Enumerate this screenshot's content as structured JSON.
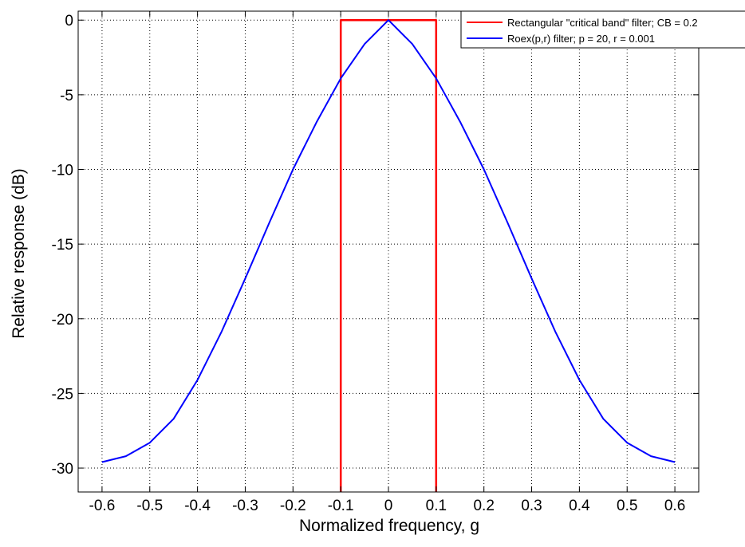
{
  "chart_data": {
    "type": "line",
    "xlabel": "Normalized frequency, g",
    "ylabel": "Relative response (dB)",
    "xlim": [
      -0.65,
      0.65
    ],
    "ylim": [
      -31.6,
      0.6
    ],
    "xticks": [
      -0.6,
      -0.5,
      -0.4,
      -0.3,
      -0.2,
      -0.1,
      0,
      0.1,
      0.2,
      0.3,
      0.4,
      0.5,
      0.6
    ],
    "xtick_labels": [
      "-0.6",
      "-0.5",
      "-0.4",
      "-0.3",
      "-0.2",
      "-0.1",
      "0",
      "0.1",
      "0.2",
      "0.3",
      "0.4",
      "0.5",
      "0.6"
    ],
    "yticks": [
      0,
      -5,
      -10,
      -15,
      -20,
      -25,
      -30
    ],
    "ytick_labels": [
      "0",
      "-5",
      "-10",
      "-15",
      "-20",
      "-25",
      "-30"
    ],
    "grid": true,
    "legend_position": "top-right",
    "series": [
      {
        "name": "Rectangular \"critical band\" filter; CB = 0.2",
        "color": "#ff0000",
        "x": [
          -0.1,
          -0.1,
          0.1,
          0.1
        ],
        "y": [
          -31.6,
          0,
          0,
          -31.6
        ]
      },
      {
        "name": "Roex(p,r) filter; p = 20, r = 0.001",
        "color": "#0000ff",
        "x": [
          -0.6,
          -0.55,
          -0.5,
          -0.45,
          -0.4,
          -0.35,
          -0.3,
          -0.25,
          -0.2,
          -0.15,
          -0.1,
          -0.05,
          0,
          0.05,
          0.1,
          0.15,
          0.2,
          0.25,
          0.3,
          0.35,
          0.4,
          0.45,
          0.5,
          0.55,
          0.6
        ],
        "y": [
          -29.6,
          -29.2,
          -28.3,
          -26.7,
          -24.1,
          -20.9,
          -17.3,
          -13.6,
          -10.0,
          -6.8,
          -3.9,
          -1.6,
          0,
          -1.6,
          -3.9,
          -6.8,
          -10.0,
          -13.6,
          -17.3,
          -20.9,
          -24.1,
          -26.7,
          -28.3,
          -29.2,
          -29.6
        ]
      }
    ]
  }
}
